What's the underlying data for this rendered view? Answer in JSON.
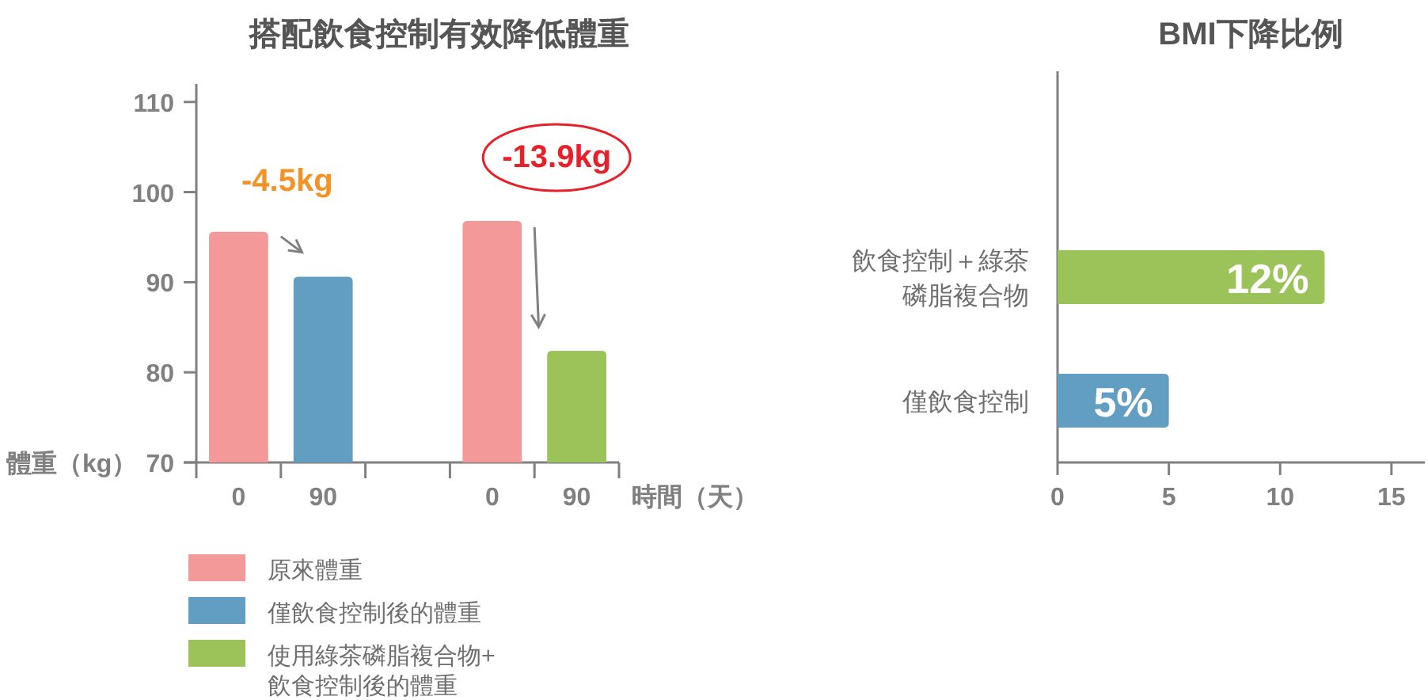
{
  "chart_data": [
    {
      "type": "bar",
      "title": "搭配飲食控制有效降低體重",
      "xlabel": "時間（天）",
      "ylabel": "體重（kg）",
      "categories": [
        "0",
        "90",
        null,
        "0",
        "90"
      ],
      "series": [
        {
          "name": "原來體重",
          "color": "#f4999a",
          "values": [
            95.6,
            null,
            null,
            96.8,
            null
          ]
        },
        {
          "name": "僅飲食控制後的體重",
          "color": "#629dc2",
          "values": [
            null,
            90.6,
            null,
            null,
            null
          ]
        },
        {
          "name": "使用綠茶磷脂複合物+飲食控制後的體重",
          "color": "#9cc35a",
          "values": [
            null,
            null,
            null,
            null,
            82.4
          ]
        }
      ],
      "ylim": [
        70,
        112
      ],
      "yticks": [
        70,
        80,
        90,
        100,
        110
      ],
      "legend": "bottom",
      "annotations": [
        "-4.5kg",
        "-13.9kg"
      ]
    },
    {
      "type": "bar",
      "orientation": "horizontal",
      "title": "BMI下降比例",
      "categories": [
        "飲食控制＋綠茶磷脂複合物",
        "僅飲食控制"
      ],
      "values": [
        12,
        5
      ],
      "colors": [
        "#9cc35a",
        "#629dc2"
      ],
      "value_labels": [
        "12%",
        "5%"
      ],
      "xlim": [
        0,
        16.5
      ],
      "xticks": [
        0,
        5,
        10,
        15
      ]
    }
  ]
}
